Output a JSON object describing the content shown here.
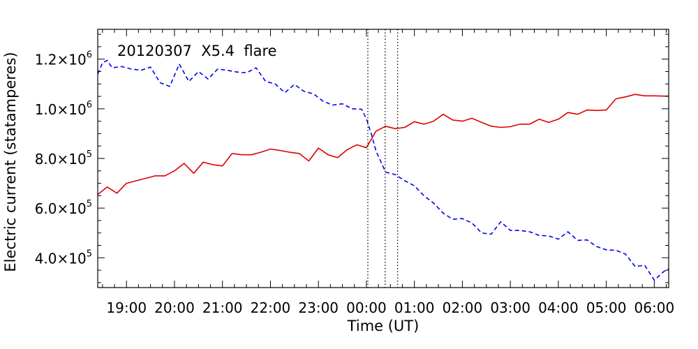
{
  "chart_data": {
    "type": "line",
    "annotation": "20120307  X5.4  flare",
    "xlabel": "Time (UT)",
    "ylabel": "Electric current (statamperes)",
    "x_unit": "hours since 18:00 UT on 2012-03-07 (axis labels show clock time)",
    "xlim": [
      0.4,
      12.3
    ],
    "ylim": [
      280000,
      1320000
    ],
    "x_tick_values": [
      1,
      2,
      3,
      4,
      5,
      6,
      7,
      8,
      9,
      10,
      11,
      12
    ],
    "x_tick_labels": [
      "19:00",
      "20:00",
      "21:00",
      "22:00",
      "23:00",
      "00:00",
      "01:00",
      "02:00",
      "03:00",
      "04:00",
      "05:00",
      "06:00"
    ],
    "y_tick_values": [
      400000,
      600000,
      800000,
      1000000,
      1200000
    ],
    "y_tick_labels": [
      {
        "mantissa": "4.0×10",
        "exp": "5"
      },
      {
        "mantissa": "6.0×10",
        "exp": "5"
      },
      {
        "mantissa": "8.0×10",
        "exp": "5"
      },
      {
        "mantissa": "1.0×10",
        "exp": "6"
      },
      {
        "mantissa": "1.2×10",
        "exp": "6"
      }
    ],
    "vlines": [
      6.03,
      6.39,
      6.65
    ],
    "grid": false,
    "series": [
      {
        "color": "#dd0000",
        "style": "solid",
        "x": [
          0.4,
          0.6,
          0.8,
          1.0,
          1.2,
          1.4,
          1.6,
          1.8,
          2.0,
          2.2,
          2.4,
          2.6,
          2.8,
          3.0,
          3.2,
          3.4,
          3.6,
          3.8,
          4.0,
          4.2,
          4.4,
          4.6,
          4.8,
          5.0,
          5.2,
          5.4,
          5.6,
          5.8,
          6.0,
          6.2,
          6.4,
          6.6,
          6.8,
          7.0,
          7.2,
          7.4,
          7.6,
          7.8,
          8.0,
          8.2,
          8.4,
          8.6,
          8.8,
          9.0,
          9.2,
          9.4,
          9.6,
          9.8,
          10.0,
          10.2,
          10.4,
          10.6,
          10.8,
          11.0,
          11.2,
          11.4,
          11.6,
          11.8,
          12.0,
          12.2,
          12.3
        ],
        "y": [
          655000,
          685000,
          660000,
          700000,
          710000,
          720000,
          730000,
          730000,
          750000,
          780000,
          740000,
          785000,
          775000,
          770000,
          820000,
          815000,
          815000,
          825000,
          838000,
          832000,
          825000,
          820000,
          790000,
          842000,
          815000,
          803000,
          835000,
          855000,
          843000,
          910000,
          930000,
          920000,
          925000,
          948000,
          938000,
          950000,
          978000,
          955000,
          950000,
          962000,
          945000,
          930000,
          925000,
          928000,
          938000,
          938000,
          958000,
          945000,
          958000,
          985000,
          978000,
          995000,
          993000,
          995000,
          1040000,
          1048000,
          1058000,
          1052000,
          1052000,
          1051000,
          1051000
        ]
      },
      {
        "color": "#0000ee",
        "style": "dashed",
        "x": [
          0.4,
          0.5,
          0.6,
          0.7,
          0.9,
          1.1,
          1.3,
          1.5,
          1.7,
          1.9,
          2.1,
          2.3,
          2.5,
          2.7,
          2.9,
          3.1,
          3.3,
          3.5,
          3.7,
          3.9,
          4.1,
          4.3,
          4.5,
          4.7,
          4.9,
          5.1,
          5.3,
          5.5,
          5.7,
          5.9,
          6.0,
          6.1,
          6.2,
          6.4,
          6.6,
          6.8,
          7.0,
          7.2,
          7.4,
          7.6,
          7.8,
          8.0,
          8.2,
          8.4,
          8.6,
          8.8,
          9.0,
          9.2,
          9.4,
          9.6,
          9.8,
          10.0,
          10.2,
          10.4,
          10.6,
          10.8,
          11.0,
          11.2,
          11.4,
          11.6,
          11.8,
          12.0,
          12.2,
          12.3
        ],
        "y": [
          1140000,
          1185000,
          1195000,
          1165000,
          1170000,
          1160000,
          1155000,
          1168000,
          1105000,
          1090000,
          1180000,
          1110000,
          1150000,
          1120000,
          1160000,
          1155000,
          1148000,
          1145000,
          1165000,
          1110000,
          1100000,
          1065000,
          1098000,
          1070000,
          1060000,
          1030000,
          1015000,
          1020000,
          1000000,
          998000,
          960000,
          900000,
          830000,
          745000,
          735000,
          710000,
          690000,
          650000,
          620000,
          580000,
          555000,
          558000,
          540000,
          500000,
          495000,
          545000,
          510000,
          510000,
          505000,
          490000,
          488000,
          475000,
          505000,
          470000,
          472000,
          445000,
          432000,
          430000,
          415000,
          365000,
          370000,
          310000,
          345000,
          355000
        ]
      }
    ]
  }
}
